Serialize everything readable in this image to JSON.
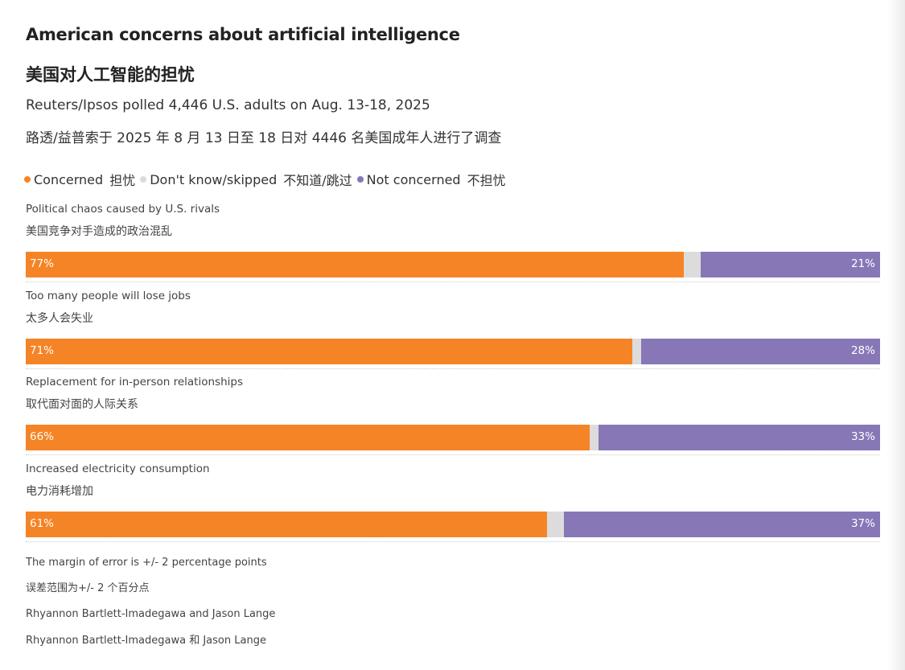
{
  "title": "American concerns about artificial intelligence",
  "title_zh": "美国对人工智能的担忧",
  "subtitle": "Reuters/Ipsos polled 4,446 U.S. adults on Aug. 13-18, 2025",
  "subtitle_zh": "路透/益普索于 2025 年 8 月 13 日至 18 日对 4446 名美国成年人进行了调查",
  "footer": {
    "note": "The margin of error is +/- 2 percentage points",
    "note_zh": "误差范围为+/- 2 个百分点",
    "credit": "Rhyannon Bartlett-Imadegawa and Jason Lange",
    "credit_zh": "Rhyannon Bartlett-Imadegawa 和 Jason Lange"
  },
  "chart_data": {
    "type": "bar",
    "orientation": "horizontal-stacked",
    "unit": "%",
    "xlim": [
      0,
      100
    ],
    "legend_position": "top",
    "legend": [
      {
        "name": "Concerned",
        "name_zh": "担忧",
        "color": "#f58426"
      },
      {
        "name": "Don't know/skipped",
        "name_zh": "不知道/跳过",
        "color": "#dcdcdc"
      },
      {
        "name": "Not concerned",
        "name_zh": "不担忧",
        "color": "#8877b7"
      }
    ],
    "categories": [
      {
        "label": "Political chaos caused by U.S. rivals",
        "label_zh": "美国竞争对手造成的政治混乱"
      },
      {
        "label": "Too many people will lose jobs",
        "label_zh": "太多人会失业"
      },
      {
        "label": "Replacement for in-person relationships",
        "label_zh": "取代面对面的人际关系"
      },
      {
        "label": "Increased electricity consumption",
        "label_zh": "电力消耗增加"
      }
    ],
    "series": [
      {
        "name": "Concerned",
        "values": [
          77,
          71,
          66,
          61
        ],
        "labels": [
          "77%",
          "71%",
          "66%",
          "61%"
        ]
      },
      {
        "name": "Don't know/skipped",
        "values": [
          2,
          1,
          1,
          2
        ]
      },
      {
        "name": "Not concerned",
        "values": [
          21,
          28,
          33,
          37
        ],
        "labels": [
          "21%",
          "28%",
          "33%",
          "37%"
        ]
      }
    ]
  }
}
